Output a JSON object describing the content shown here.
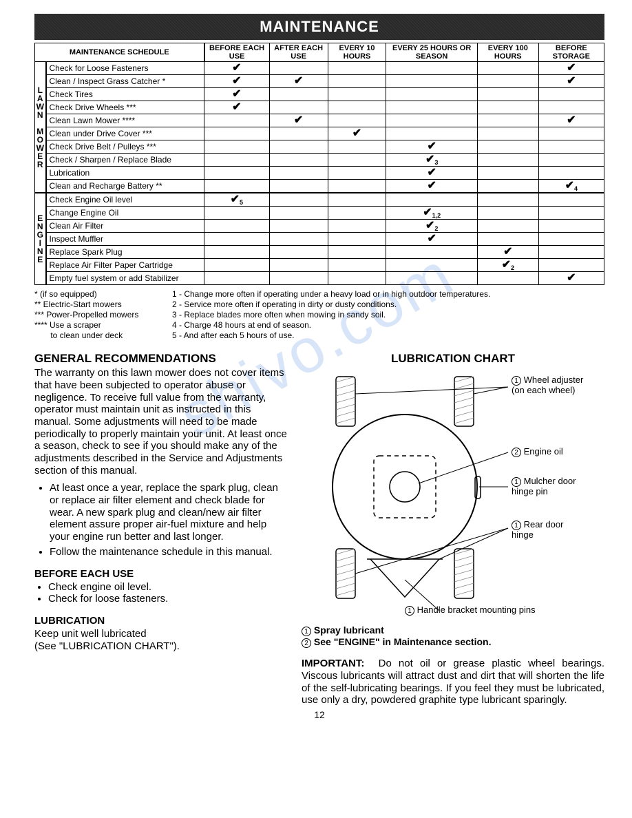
{
  "header": "MAINTENANCE",
  "schedule": {
    "title": "MAINTENANCE SCHEDULE",
    "cols": [
      "BEFORE EACH USE",
      "AFTER EACH USE",
      "EVERY 10 HOURS",
      "EVERY 25 HOURS OR SEASON",
      "EVERY 100 HOURS",
      "BEFORE STORAGE"
    ],
    "groups": [
      {
        "label": "LAWN MOWER",
        "rows": [
          {
            "task": "Check for Loose Fasteners",
            "marks": [
              "✔",
              "",
              "",
              "",
              "",
              "✔"
            ]
          },
          {
            "task": "Clean / Inspect Grass Catcher *",
            "marks": [
              "✔",
              "✔",
              "",
              "",
              "",
              "✔"
            ]
          },
          {
            "task": "Check Tires",
            "marks": [
              "✔",
              "",
              "",
              "",
              "",
              ""
            ]
          },
          {
            "task": "Check Drive Wheels ***",
            "marks": [
              "✔",
              "",
              "",
              "",
              "",
              ""
            ]
          },
          {
            "task": "Clean Lawn Mower ****",
            "marks": [
              "",
              "✔",
              "",
              "",
              "",
              "✔"
            ]
          },
          {
            "task": "Clean under Drive Cover ***",
            "marks": [
              "",
              "",
              "✔",
              "",
              "",
              ""
            ]
          },
          {
            "task": "Check Drive Belt / Pulleys ***",
            "marks": [
              "",
              "",
              "",
              "✔",
              "",
              ""
            ]
          },
          {
            "task": "Check / Sharpen / Replace Blade",
            "marks": [
              "",
              "",
              "",
              "✔3",
              "",
              ""
            ]
          },
          {
            "task": "Lubrication",
            "marks": [
              "",
              "",
              "",
              "✔",
              "",
              ""
            ]
          },
          {
            "task": "Clean and Recharge Battery **",
            "marks": [
              "",
              "",
              "",
              "✔",
              "",
              "✔4"
            ]
          }
        ]
      },
      {
        "label": "ENGINE",
        "rows": [
          {
            "task": "Check Engine Oil level",
            "marks": [
              "✔5",
              "",
              "",
              "",
              "",
              ""
            ]
          },
          {
            "task": "Change Engine Oil",
            "marks": [
              "",
              "",
              "",
              "✔1,2",
              "",
              ""
            ]
          },
          {
            "task": "Clean Air Filter",
            "marks": [
              "",
              "",
              "",
              "✔2",
              "",
              ""
            ]
          },
          {
            "task": "Inspect Muffler",
            "marks": [
              "",
              "",
              "",
              "✔",
              "",
              ""
            ]
          },
          {
            "task": "Replace Spark Plug",
            "marks": [
              "",
              "",
              "",
              "",
              "✔",
              ""
            ]
          },
          {
            "task": "Replace Air Filter Paper Cartridge",
            "marks": [
              "",
              "",
              "",
              "",
              "✔2",
              ""
            ]
          },
          {
            "task": "Empty fuel system or add Stabilizer",
            "marks": [
              "",
              "",
              "",
              "",
              "",
              "✔"
            ]
          }
        ]
      }
    ]
  },
  "footnotes": {
    "left": [
      "* (if so equipped)",
      "** Electric-Start mowers",
      "*** Power-Propelled mowers",
      "**** Use a scraper",
      "       to clean under deck"
    ],
    "right": [
      "1 - Change more often if operating under a heavy load or in high outdoor temperatures.",
      "2 - Service more often if operating in dirty or dusty conditions.",
      "3 - Replace blades more often when mowing in sandy soil.",
      "4 - Charge 48 hours at end of season.",
      "5 - And after each 5 hours of use."
    ]
  },
  "general": {
    "heading": "GENERAL RECOMMENDATIONS",
    "para": "The warranty on this lawn mower does not cover items that have been subjected to operator abuse or negligence.  To receive full value from the warranty, operator must maintain unit as instructed in this manual.  Some adjustments will need to be made periodically to properly maintain your unit.  At least once a season, check to see if you should make any of the adjustments described in the Service and Adjustments section of this manual.",
    "bullets": [
      "At least once a year, replace the spark plug, clean or replace air filter element and check blade for wear.  A new spark plug and clean/new air filter element assure proper air-fuel mixture and help your engine run better and last longer.",
      "Follow the maintenance schedule in this manual."
    ]
  },
  "before": {
    "heading": "BEFORE EACH USE",
    "items": [
      "Check engine oil level.",
      "Check for loose fasteners."
    ]
  },
  "lubrication_sec": {
    "heading": "LUBRICATION",
    "text": "Keep unit well lubricated\n(See \"LUBRICATION CHART\")."
  },
  "lube_chart": {
    "heading": "LUBRICATION CHART",
    "callouts": {
      "wheel": "Wheel adjuster (on each wheel)",
      "engine": "Engine oil",
      "mulcher": "Mulcher door hinge pin",
      "rear": "Rear door hinge",
      "handle": "Handle bracket mounting pins"
    }
  },
  "legend": {
    "l1": "Spray lubricant",
    "l2": "See \"ENGINE\" in Maintenance section."
  },
  "important": {
    "label": "IMPORTANT:",
    "text": "Do not oil or grease plastic wheel bearings.   Viscous lubricants will attract dust and dirt that will shorten the life of the self-lubricating bearings.  If you feel they must be lubricated, use only a dry, powdered graphite type lubricant sparingly."
  },
  "page_number": "12",
  "watermark": "shivo.com",
  "colors": {
    "ink": "#000000",
    "bg": "#ffffff",
    "header_bg": "#2a2a2a",
    "watermark": "rgba(100,150,230,0.25)"
  }
}
